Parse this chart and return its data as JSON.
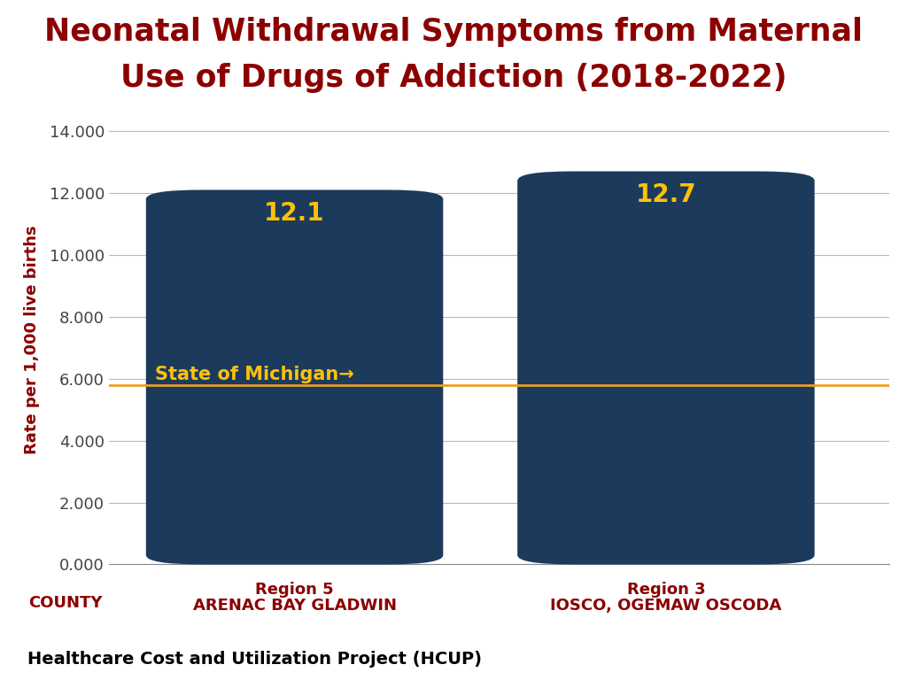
{
  "title_line1": "Neonatal Withdrawal Symptoms from Maternal",
  "title_line2": "Use of Drugs of Addiction (2018-2022)",
  "title_color": "#8B0000",
  "bar_labels_line1": [
    "Region 5",
    "Region 3"
  ],
  "bar_labels_line2": [
    "ARENAC BAY GLADWIN",
    "IOSCO, OGEMAW OSCODA"
  ],
  "county_label": "COUNTY",
  "bar_values": [
    12.1,
    12.7
  ],
  "bar_color": "#1B3A5C",
  "bar_value_labels": [
    "12.1",
    "12.7"
  ],
  "bar_value_color": "#FFC107",
  "reference_line_value": 5.8,
  "reference_line_color": "#E8A020",
  "reference_line_label": "State of Michigan←",
  "reference_line_label_color": "#FFC107",
  "ylabel": "Rate per 1,000 live births",
  "ylabel_color": "#8B0000",
  "yticks": [
    0.0,
    2.0,
    4.0,
    6.0,
    8.0,
    10.0,
    12.0,
    14.0
  ],
  "ytick_labels": [
    "0.000",
    "2.000",
    "4.000",
    "6.000",
    "8.000",
    "10.000",
    "12.000",
    "14.000"
  ],
  "ylim": [
    0,
    14.5
  ],
  "xtick_color": "#8B0000",
  "grid_color": "#DDAAAA",
  "background_color": "#FFFFFF",
  "footer_text": "Healthcare Cost and Utilization Project (HCUP)",
  "footer_color": "#000000",
  "bar_positions": [
    1,
    3
  ],
  "bar_width": 1.6,
  "xlim": [
    0,
    4.2
  ]
}
